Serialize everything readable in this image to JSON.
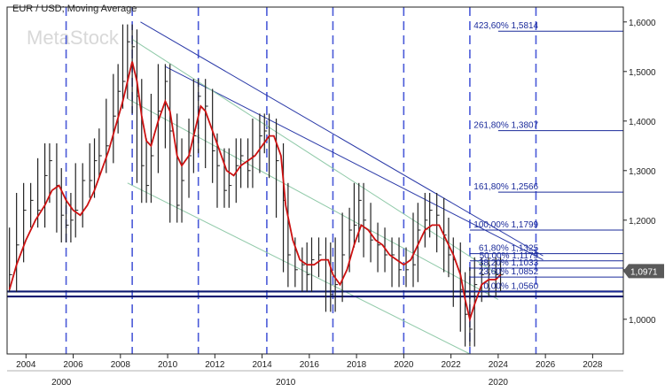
{
  "chart_data": {
    "type": "line",
    "title": "EUR / USD; Moving Average",
    "watermark": "MetaStock",
    "x_range": [
      2003.2,
      2029.3
    ],
    "y_range": [
      0.93,
      1.63
    ],
    "x_ticks": [
      2004,
      2006,
      2008,
      2010,
      2012,
      2014,
      2016,
      2018,
      2020,
      2022,
      2024,
      2026,
      2028
    ],
    "decade_labels": [
      {
        "x": 2000,
        "label": "2000",
        "pos": 2005.5
      },
      {
        "x": 2010,
        "label": "2010",
        "pos": 2015.0
      },
      {
        "x": 2020,
        "label": "2020",
        "pos": 2024.0
      }
    ],
    "y_ticks": [
      "1,0000",
      "1,1000",
      "1,2000",
      "1,3000",
      "1,4000",
      "1,5000",
      "1,6000"
    ],
    "y_tick_values": [
      1.0,
      1.1,
      1.2,
      1.3,
      1.4,
      1.5,
      1.6
    ],
    "grid": false,
    "last_price": {
      "value": 1.0971,
      "label": "1,0971"
    },
    "cycle_lines_x": [
      2005.7,
      2008.5,
      2011.3,
      2014.2,
      2017.0,
      2020.0,
      2022.8,
      2025.6
    ],
    "fib_levels": [
      {
        "label": "423,60% 1,5814",
        "value": 1.5814
      },
      {
        "label": "261,80% 1,3807",
        "value": 1.3807
      },
      {
        "label": "161,80% 1,2566",
        "value": 1.2566
      },
      {
        "label": "100,00% 1,1799",
        "value": 1.1799
      },
      {
        "label": "61,80% 1,1325",
        "value": 1.1325
      },
      {
        "label": "50,00% 1,1179",
        "value": 1.1179
      },
      {
        "label": "38,20% 1,1033",
        "value": 1.1033
      },
      {
        "label": "23,60% 1,0852",
        "value": 1.0852
      },
      {
        "label": "0,00% 1,0560",
        "value": 1.056
      }
    ],
    "support_lines": [
      1.056,
      1.046
    ],
    "trendlines": [
      {
        "color": "#2b3aa8",
        "points": [
          [
            2008.85,
            1.6
          ],
          [
            2025.9,
            1.128
          ]
        ]
      },
      {
        "color": "#2b3aa8",
        "points": [
          [
            2009.9,
            1.51
          ],
          [
            2025.9,
            1.12
          ]
        ]
      },
      {
        "color": "#8fc9a8",
        "points": [
          [
            2008.5,
            1.565
          ],
          [
            2024.0,
            1.09
          ]
        ]
      },
      {
        "color": "#8fc9a8",
        "points": [
          [
            2008.3,
            1.445
          ],
          [
            2024.0,
            1.04
          ]
        ]
      },
      {
        "color": "#8fc9a8",
        "points": [
          [
            2008.3,
            1.275
          ],
          [
            2022.8,
            0.93
          ]
        ]
      }
    ],
    "series": [
      {
        "name": "EUR/USD",
        "type": "bar",
        "color": "#222222",
        "x": [
          2003.3,
          2003.6,
          2003.9,
          2004.2,
          2004.5,
          2004.8,
          2005.0,
          2005.3,
          2005.5,
          2005.7,
          2005.9,
          2006.1,
          2006.4,
          2006.7,
          2006.9,
          2007.1,
          2007.4,
          2007.7,
          2007.9,
          2008.1,
          2008.3,
          2008.5,
          2008.7,
          2008.9,
          2009.1,
          2009.3,
          2009.6,
          2009.9,
          2010.1,
          2010.4,
          2010.6,
          2010.9,
          2011.1,
          2011.3,
          2011.6,
          2011.9,
          2012.1,
          2012.4,
          2012.6,
          2012.9,
          2013.1,
          2013.4,
          2013.6,
          2013.9,
          2014.1,
          2014.3,
          2014.6,
          2014.9,
          2015.1,
          2015.4,
          2015.7,
          2015.9,
          2016.1,
          2016.4,
          2016.7,
          2016.9,
          2017.1,
          2017.4,
          2017.7,
          2017.9,
          2018.1,
          2018.3,
          2018.6,
          2018.9,
          2019.2,
          2019.5,
          2019.8,
          2020.1,
          2020.4,
          2020.6,
          2020.9,
          2021.1,
          2021.4,
          2021.7,
          2021.9,
          2022.1,
          2022.4,
          2022.6,
          2022.8,
          2023.0,
          2023.3,
          2023.6,
          2023.9,
          2024.1
        ],
        "values": [
          1.09,
          1.15,
          1.22,
          1.24,
          1.22,
          1.29,
          1.32,
          1.27,
          1.21,
          1.19,
          1.2,
          1.22,
          1.28,
          1.28,
          1.32,
          1.33,
          1.35,
          1.41,
          1.46,
          1.48,
          1.56,
          1.55,
          1.45,
          1.31,
          1.27,
          1.33,
          1.42,
          1.48,
          1.38,
          1.23,
          1.28,
          1.33,
          1.37,
          1.45,
          1.43,
          1.34,
          1.31,
          1.26,
          1.27,
          1.31,
          1.33,
          1.3,
          1.33,
          1.37,
          1.38,
          1.37,
          1.32,
          1.24,
          1.13,
          1.1,
          1.11,
          1.09,
          1.12,
          1.13,
          1.12,
          1.05,
          1.07,
          1.13,
          1.18,
          1.19,
          1.24,
          1.2,
          1.16,
          1.15,
          1.13,
          1.13,
          1.1,
          1.1,
          1.11,
          1.18,
          1.2,
          1.22,
          1.21,
          1.17,
          1.13,
          1.12,
          1.06,
          1.01,
          0.98,
          1.07,
          1.09,
          1.08,
          1.09,
          1.09
        ]
      },
      {
        "name": "Moving Average",
        "type": "line",
        "color": "#cc1111",
        "x": [
          2003.3,
          2003.6,
          2004.0,
          2004.4,
          2004.8,
          2005.1,
          2005.4,
          2005.7,
          2006.0,
          2006.3,
          2006.6,
          2006.9,
          2007.2,
          2007.5,
          2007.8,
          2008.1,
          2008.3,
          2008.5,
          2008.7,
          2008.9,
          2009.1,
          2009.3,
          2009.6,
          2009.9,
          2010.1,
          2010.4,
          2010.6,
          2010.9,
          2011.1,
          2011.4,
          2011.6,
          2011.9,
          2012.2,
          2012.5,
          2012.8,
          2013.1,
          2013.4,
          2013.7,
          2014.0,
          2014.3,
          2014.5,
          2014.8,
          2015.0,
          2015.3,
          2015.6,
          2015.9,
          2016.2,
          2016.5,
          2016.8,
          2017.0,
          2017.3,
          2017.6,
          2017.9,
          2018.2,
          2018.5,
          2018.8,
          2019.1,
          2019.4,
          2019.7,
          2020.0,
          2020.3,
          2020.6,
          2020.9,
          2021.2,
          2021.5,
          2021.8,
          2022.1,
          2022.4,
          2022.6,
          2022.8,
          2023.0,
          2023.3,
          2023.6,
          2023.9,
          2024.1
        ],
        "values": [
          1.06,
          1.11,
          1.16,
          1.2,
          1.23,
          1.26,
          1.27,
          1.24,
          1.22,
          1.21,
          1.23,
          1.26,
          1.3,
          1.34,
          1.39,
          1.44,
          1.48,
          1.52,
          1.48,
          1.41,
          1.36,
          1.35,
          1.4,
          1.44,
          1.42,
          1.33,
          1.31,
          1.33,
          1.37,
          1.43,
          1.42,
          1.38,
          1.34,
          1.3,
          1.29,
          1.31,
          1.32,
          1.33,
          1.35,
          1.37,
          1.37,
          1.33,
          1.23,
          1.16,
          1.12,
          1.11,
          1.11,
          1.12,
          1.12,
          1.09,
          1.07,
          1.1,
          1.15,
          1.19,
          1.18,
          1.16,
          1.15,
          1.13,
          1.12,
          1.11,
          1.12,
          1.15,
          1.18,
          1.19,
          1.19,
          1.16,
          1.13,
          1.09,
          1.04,
          1.0,
          1.03,
          1.07,
          1.08,
          1.08,
          1.09
        ]
      }
    ]
  }
}
